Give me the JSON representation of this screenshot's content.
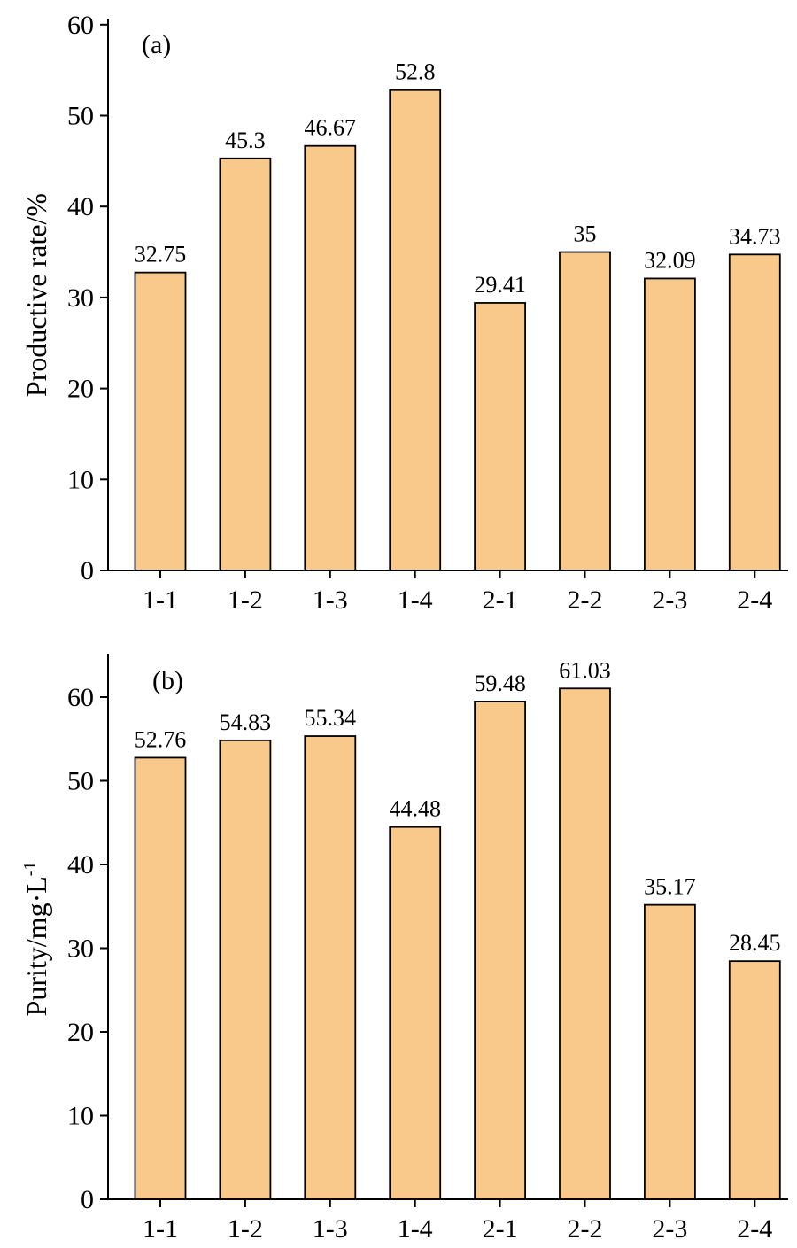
{
  "colors": {
    "bar_fill": "#F8C98B",
    "axis": "#000000"
  },
  "chart_data": [
    {
      "type": "bar",
      "panel_label": "(a)",
      "categories": [
        "1-1",
        "1-2",
        "1-3",
        "1-4",
        "2-1",
        "2-2",
        "2-3",
        "2-4"
      ],
      "values": [
        32.75,
        45.3,
        46.67,
        52.8,
        29.41,
        35,
        32.09,
        34.73
      ],
      "value_labels": [
        "32.75",
        "45.3",
        "46.67",
        "52.8",
        "29.41",
        "35",
        "32.09",
        "34.73"
      ],
      "title": "",
      "xlabel": "",
      "ylabel": "Productive rate/%",
      "ylim": [
        0,
        60
      ],
      "yticks": [
        0,
        10,
        20,
        30,
        40,
        50,
        60
      ],
      "grid": false
    },
    {
      "type": "bar",
      "panel_label": "(b)",
      "categories": [
        "1-1",
        "1-2",
        "1-3",
        "1-4",
        "2-1",
        "2-2",
        "2-3",
        "2-4"
      ],
      "values": [
        52.76,
        54.83,
        55.34,
        44.48,
        59.48,
        61.03,
        35.17,
        28.45
      ],
      "value_labels": [
        "52.76",
        "54.83",
        "55.34",
        "44.48",
        "59.48",
        "61.03",
        "35.17",
        "28.45"
      ],
      "title": "",
      "xlabel": "",
      "ylabel": "Purity/mg·L",
      "ylabel_superscript": "-1",
      "ylim": [
        0,
        65
      ],
      "yticks": [
        0,
        10,
        20,
        30,
        40,
        50,
        60
      ],
      "grid": false
    }
  ]
}
